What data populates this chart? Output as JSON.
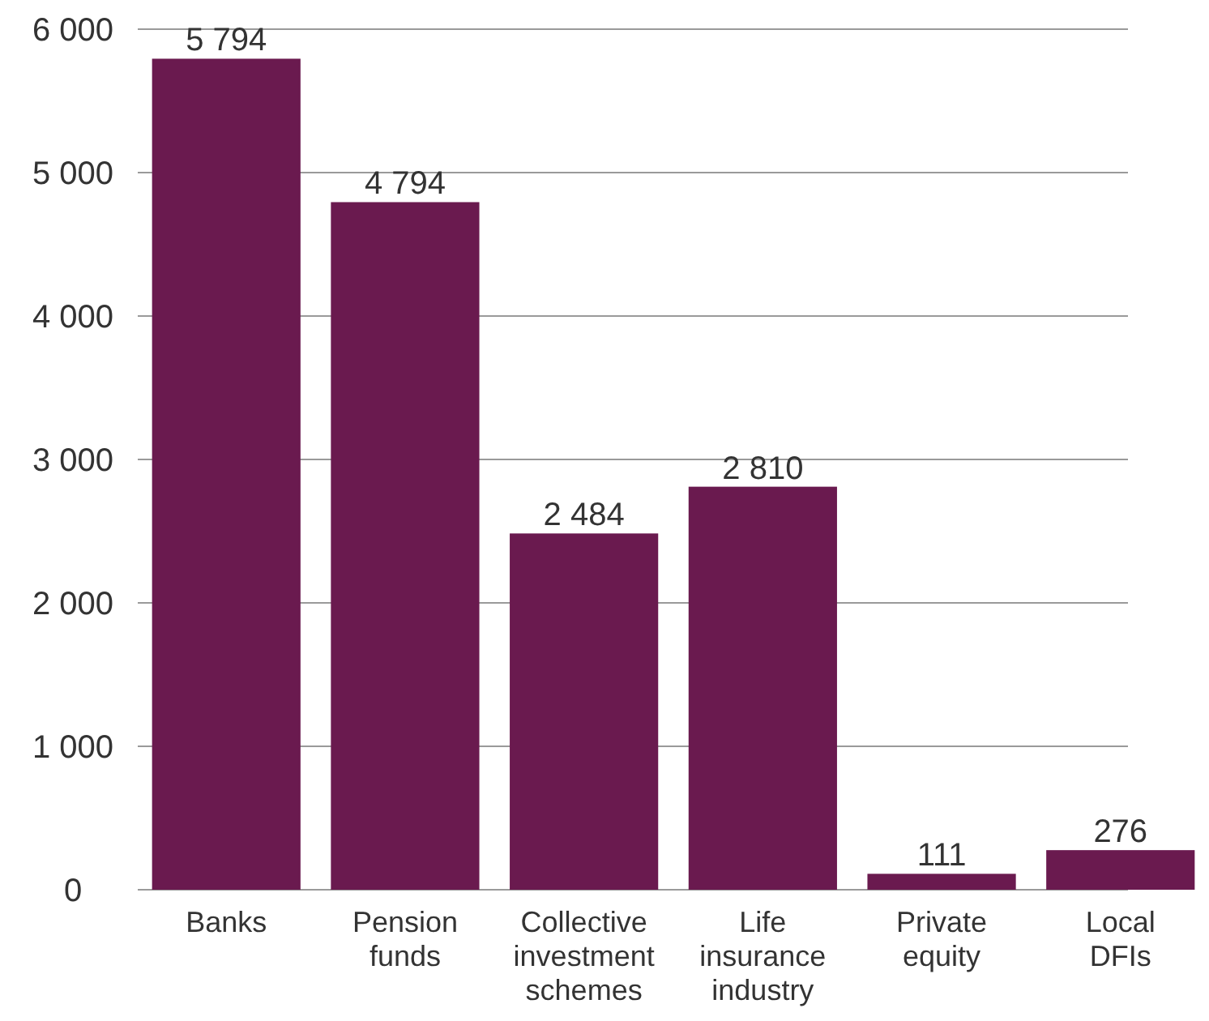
{
  "chart_data": {
    "type": "bar",
    "categories": [
      "Banks",
      "Pension funds",
      "Collective investment schemes",
      "Life insurance industry",
      "Private equity",
      "Local DFIs"
    ],
    "values": [
      5794,
      4794,
      2484,
      2810,
      111,
      276
    ],
    "value_labels": [
      "5 794",
      "4 794",
      "2 484",
      "2 810",
      "111",
      "276"
    ],
    "color": "#6a1a4f",
    "ylim": [
      0,
      6000
    ],
    "yticks": [
      {
        "value": 0,
        "label": "0"
      },
      {
        "value": 1000,
        "label": "1 000"
      },
      {
        "value": 2000,
        "label": "2 000"
      },
      {
        "value": 3000,
        "label": "3 000"
      },
      {
        "value": 4000,
        "label": "4 000"
      },
      {
        "value": 5000,
        "label": "5 000"
      },
      {
        "value": 6000,
        "label": "6 000"
      }
    ],
    "grid": "y"
  }
}
